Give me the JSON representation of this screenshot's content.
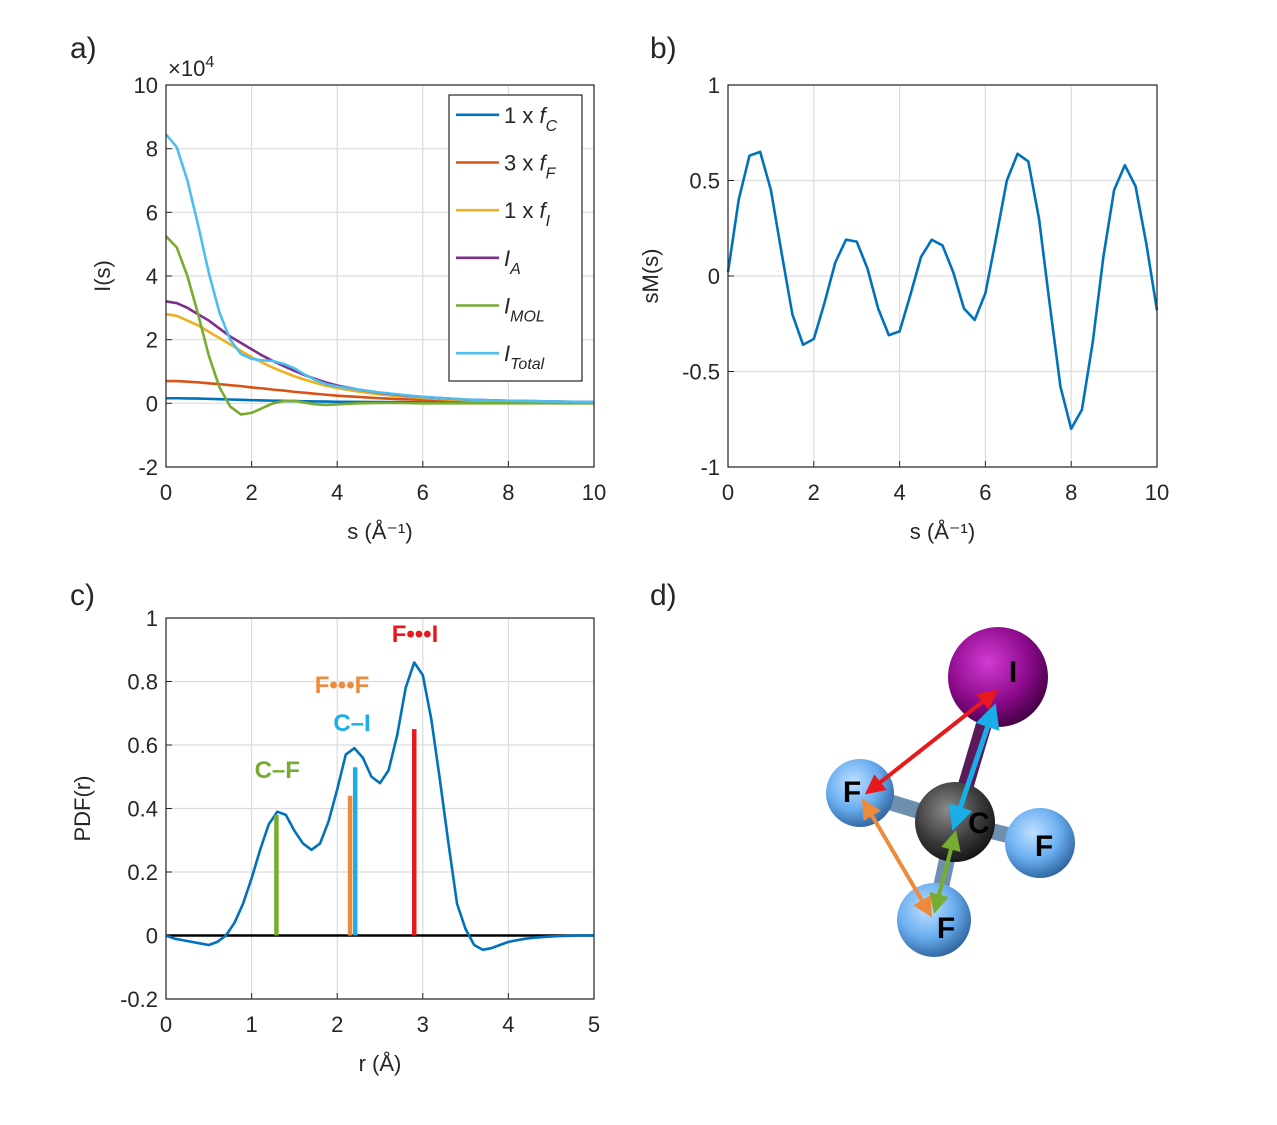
{
  "chart_data": [
    {
      "type": "line",
      "panel": "a)",
      "xlabel": "s (Å⁻¹)",
      "ylabel": "I(s)",
      "y_multiplier": {
        "base": "×10",
        "exponent": "4"
      },
      "xlim": [
        0,
        10
      ],
      "ylim": [
        -2,
        10
      ],
      "xticks": [
        0,
        2,
        4,
        6,
        8,
        10
      ],
      "yticks": [
        -2,
        0,
        2,
        4,
        6,
        8,
        10
      ],
      "grid": true,
      "legend": "northeast",
      "x": [
        0,
        0.25,
        0.5,
        0.75,
        1,
        1.25,
        1.5,
        1.75,
        2,
        2.25,
        2.5,
        2.75,
        3,
        3.25,
        3.5,
        3.75,
        4,
        4.5,
        5,
        5.5,
        6,
        6.5,
        7,
        7.5,
        8,
        8.5,
        9,
        9.5,
        10
      ],
      "series": [
        {
          "name": [
            "1 x ",
            "f",
            "C"
          ],
          "color": "#0072bd",
          "values": [
            0.16,
            0.16,
            0.155,
            0.15,
            0.14,
            0.13,
            0.12,
            0.11,
            0.1,
            0.09,
            0.085,
            0.08,
            0.07,
            0.065,
            0.06,
            0.055,
            0.05,
            0.045,
            0.04,
            0.035,
            0.03,
            0.027,
            0.025,
            0.022,
            0.02,
            0.018,
            0.016,
            0.015,
            0.014
          ]
        },
        {
          "name": [
            "3 x ",
            "f",
            "F"
          ],
          "color": "#d95319",
          "values": [
            0.7,
            0.7,
            0.68,
            0.66,
            0.63,
            0.6,
            0.57,
            0.54,
            0.5,
            0.47,
            0.43,
            0.4,
            0.36,
            0.33,
            0.3,
            0.27,
            0.24,
            0.2,
            0.16,
            0.13,
            0.11,
            0.09,
            0.075,
            0.06,
            0.05,
            0.045,
            0.04,
            0.035,
            0.03
          ]
        },
        {
          "name": [
            "1 x ",
            "f",
            "I"
          ],
          "color": "#edb120",
          "values": [
            2.8,
            2.75,
            2.6,
            2.45,
            2.25,
            2.05,
            1.85,
            1.65,
            1.45,
            1.28,
            1.12,
            0.98,
            0.85,
            0.74,
            0.64,
            0.55,
            0.48,
            0.37,
            0.28,
            0.22,
            0.17,
            0.13,
            0.1,
            0.08,
            0.065,
            0.055,
            0.045,
            0.035,
            0.03
          ]
        },
        {
          "name": [
            "I",
            "A"
          ],
          "color": "#7e2f8e",
          "values": [
            3.2,
            3.15,
            3.0,
            2.8,
            2.6,
            2.35,
            2.1,
            1.9,
            1.7,
            1.5,
            1.33,
            1.17,
            1.02,
            0.88,
            0.76,
            0.65,
            0.56,
            0.43,
            0.33,
            0.26,
            0.2,
            0.16,
            0.12,
            0.1,
            0.08,
            0.07,
            0.06,
            0.05,
            0.04
          ]
        },
        {
          "name": [
            "I",
            "MOL"
          ],
          "color": "#77ac30",
          "values": [
            5.25,
            4.9,
            4.0,
            2.8,
            1.5,
            0.5,
            -0.1,
            -0.35,
            -0.3,
            -0.15,
            0,
            0.07,
            0.08,
            0.02,
            -0.03,
            -0.05,
            -0.03,
            0,
            0.01,
            0.01,
            0,
            0,
            0,
            0,
            0,
            0,
            0,
            0,
            0
          ]
        },
        {
          "name": [
            "I",
            "Total"
          ],
          "color": "#4dbeee",
          "values": [
            8.45,
            8.05,
            7.0,
            5.6,
            4.1,
            2.85,
            2.0,
            1.55,
            1.4,
            1.35,
            1.33,
            1.24,
            1.1,
            0.9,
            0.73,
            0.6,
            0.53,
            0.43,
            0.34,
            0.27,
            0.2,
            0.16,
            0.12,
            0.1,
            0.08,
            0.07,
            0.06,
            0.05,
            0.04
          ]
        }
      ]
    },
    {
      "type": "line",
      "panel": "b)",
      "xlabel": "s (Å⁻¹)",
      "ylabel": "sM(s)",
      "xlim": [
        0,
        10
      ],
      "ylim": [
        -1,
        1
      ],
      "xticks": [
        0,
        2,
        4,
        6,
        8,
        10
      ],
      "yticks": [
        -1,
        -0.5,
        0,
        0.5,
        1
      ],
      "grid": true,
      "x": [
        0,
        0.25,
        0.5,
        0.75,
        1,
        1.25,
        1.5,
        1.75,
        2,
        2.25,
        2.5,
        2.75,
        3,
        3.25,
        3.5,
        3.75,
        4,
        4.25,
        4.5,
        4.75,
        5,
        5.25,
        5.5,
        5.75,
        6,
        6.25,
        6.5,
        6.75,
        7,
        7.25,
        7.5,
        7.75,
        8,
        8.25,
        8.5,
        8.75,
        9,
        9.25,
        9.5,
        9.75,
        10
      ],
      "series": [
        {
          "color": "#0072bd",
          "values": [
            0.02,
            0.4,
            0.63,
            0.65,
            0.45,
            0.12,
            -0.2,
            -0.36,
            -0.33,
            -0.14,
            0.07,
            0.19,
            0.18,
            0.04,
            -0.17,
            -0.31,
            -0.29,
            -0.1,
            0.1,
            0.19,
            0.16,
            0.02,
            -0.17,
            -0.23,
            -0.09,
            0.2,
            0.5,
            0.64,
            0.6,
            0.3,
            -0.15,
            -0.58,
            -0.8,
            -0.7,
            -0.35,
            0.1,
            0.45,
            0.58,
            0.47,
            0.17,
            -0.18
          ]
        }
      ]
    },
    {
      "type": "line",
      "panel": "c)",
      "xlabel": "r (Å)",
      "ylabel": "PDF(r)",
      "xlim": [
        0,
        5
      ],
      "ylim": [
        -0.2,
        1
      ],
      "xticks": [
        0,
        1,
        2,
        3,
        4,
        5
      ],
      "yticks": [
        -0.2,
        0,
        0.2,
        0.4,
        0.6,
        0.8,
        1
      ],
      "grid": true,
      "x": [
        0,
        0.1,
        0.2,
        0.3,
        0.4,
        0.5,
        0.6,
        0.7,
        0.8,
        0.9,
        1,
        1.1,
        1.2,
        1.3,
        1.4,
        1.5,
        1.6,
        1.7,
        1.8,
        1.9,
        2,
        2.1,
        2.2,
        2.3,
        2.4,
        2.5,
        2.6,
        2.7,
        2.8,
        2.9,
        3,
        3.1,
        3.2,
        3.3,
        3.4,
        3.5,
        3.6,
        3.7,
        3.8,
        3.9,
        4,
        4.1,
        4.2,
        4.3,
        4.4,
        4.5,
        4.6,
        4.7,
        4.8,
        4.9,
        5
      ],
      "series": [
        {
          "color": "#0072bd",
          "values": [
            0,
            -0.01,
            -0.015,
            -0.02,
            -0.025,
            -0.03,
            -0.02,
            0,
            0.04,
            0.1,
            0.18,
            0.27,
            0.35,
            0.39,
            0.38,
            0.33,
            0.29,
            0.27,
            0.29,
            0.36,
            0.46,
            0.57,
            0.59,
            0.56,
            0.5,
            0.48,
            0.52,
            0.63,
            0.78,
            0.86,
            0.82,
            0.68,
            0.49,
            0.29,
            0.1,
            0.02,
            -0.03,
            -0.045,
            -0.04,
            -0.03,
            -0.02,
            -0.015,
            -0.01,
            -0.007,
            -0.005,
            -0.003,
            -0.002,
            -0.001,
            0,
            0,
            0
          ]
        }
      ],
      "sticks": [
        {
          "label": "C–F",
          "x": 1.29,
          "value": 0.38,
          "color": "#77ac30"
        },
        {
          "label": "F•••F",
          "x": 2.15,
          "value": 0.44,
          "color": "#ee8a3c"
        },
        {
          "label": "C–I",
          "x": 2.21,
          "value": 0.53,
          "color": "#1aaee8"
        },
        {
          "label": "F•••I",
          "x": 2.9,
          "value": 0.65,
          "color": "#e8191c"
        }
      ]
    }
  ],
  "molecule": {
    "panel": "d)",
    "atoms": [
      "I",
      "C",
      "F",
      "F",
      "F"
    ]
  }
}
